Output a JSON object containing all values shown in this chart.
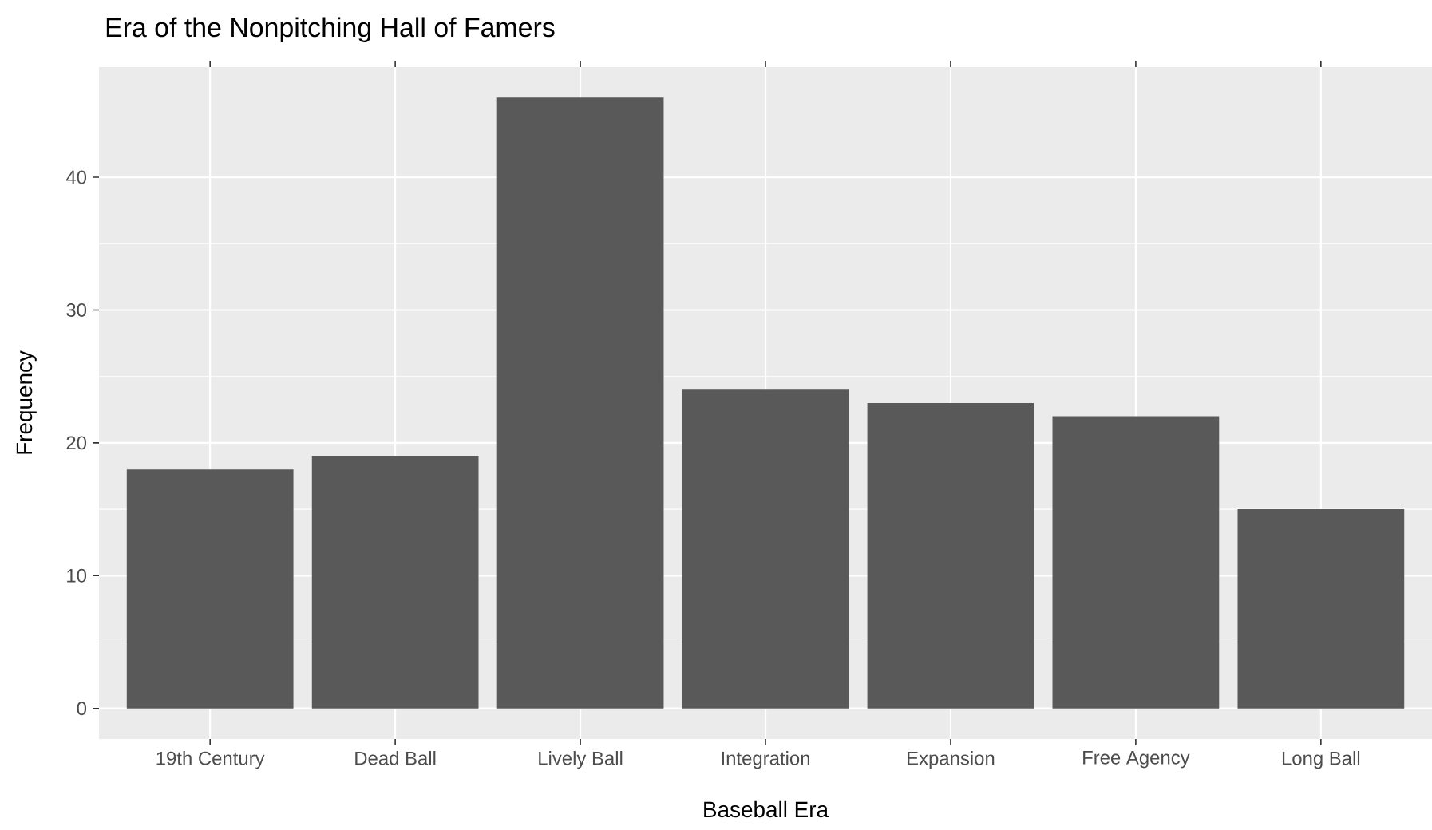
{
  "chart_data": {
    "type": "bar",
    "title": "Era of the Nonpitching Hall of Famers",
    "xlabel": "Baseball Era",
    "ylabel": "Frequency",
    "categories": [
      "19th Century",
      "Dead Ball",
      "Lively Ball",
      "Integration",
      "Expansion",
      "Free Agency",
      "Long Ball"
    ],
    "values": [
      18,
      19,
      46,
      24,
      23,
      22,
      15
    ],
    "color": "#595959",
    "ylim": [
      -2.3,
      48.3
    ],
    "yticks": [
      0,
      10,
      20,
      30,
      40
    ],
    "grid": true
  }
}
